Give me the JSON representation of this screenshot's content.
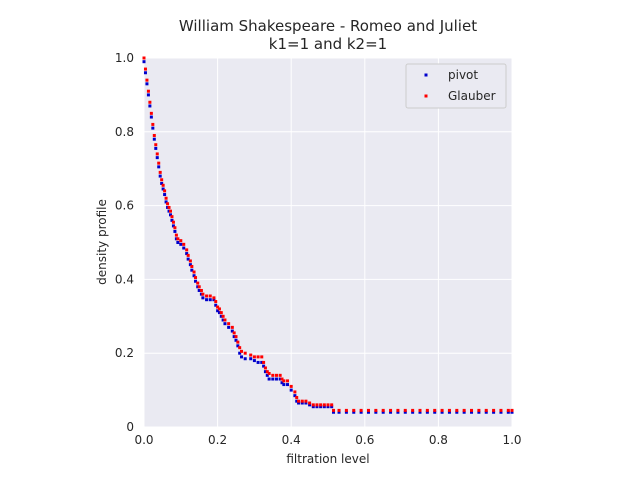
{
  "chart_data": {
    "type": "scatter",
    "title": "William Shakespeare - Romeo and Juliet",
    "subtitle": "k1=1 and k2=1",
    "xlabel": "filtration level",
    "ylabel": "density profile",
    "xlim": [
      0,
      1
    ],
    "ylim": [
      0,
      1
    ],
    "grid": true,
    "legend_position": "top-right",
    "x_ticks": [
      "0.0",
      "0.2",
      "0.4",
      "0.6",
      "0.8",
      "1.0"
    ],
    "y_ticks": [
      "0",
      "0.2",
      "0.4",
      "0.6",
      "0.8",
      "1.0"
    ],
    "colors": {
      "plot_background": "#eaeaf2",
      "grid": "#ffffff",
      "pivot": "#0000cc",
      "glauber": "#ff0000"
    },
    "series": [
      {
        "name": "pivot",
        "color": "#0000cc",
        "points": [
          [
            0.0,
            0.99
          ],
          [
            0.004,
            0.96
          ],
          [
            0.008,
            0.93
          ],
          [
            0.012,
            0.9
          ],
          [
            0.016,
            0.87
          ],
          [
            0.02,
            0.84
          ],
          [
            0.024,
            0.81
          ],
          [
            0.028,
            0.78
          ],
          [
            0.032,
            0.755
          ],
          [
            0.036,
            0.73
          ],
          [
            0.04,
            0.705
          ],
          [
            0.044,
            0.68
          ],
          [
            0.048,
            0.66
          ],
          [
            0.052,
            0.645
          ],
          [
            0.056,
            0.63
          ],
          [
            0.06,
            0.61
          ],
          [
            0.064,
            0.595
          ],
          [
            0.068,
            0.585
          ],
          [
            0.072,
            0.575
          ],
          [
            0.076,
            0.56
          ],
          [
            0.08,
            0.545
          ],
          [
            0.084,
            0.53
          ],
          [
            0.088,
            0.51
          ],
          [
            0.092,
            0.5
          ],
          [
            0.1,
            0.495
          ],
          [
            0.108,
            0.485
          ],
          [
            0.116,
            0.47
          ],
          [
            0.12,
            0.455
          ],
          [
            0.126,
            0.44
          ],
          [
            0.13,
            0.425
          ],
          [
            0.136,
            0.41
          ],
          [
            0.14,
            0.395
          ],
          [
            0.146,
            0.38
          ],
          [
            0.15,
            0.37
          ],
          [
            0.156,
            0.36
          ],
          [
            0.16,
            0.35
          ],
          [
            0.17,
            0.345
          ],
          [
            0.18,
            0.345
          ],
          [
            0.19,
            0.345
          ],
          [
            0.195,
            0.33
          ],
          [
            0.2,
            0.315
          ],
          [
            0.205,
            0.31
          ],
          [
            0.21,
            0.3
          ],
          [
            0.215,
            0.29
          ],
          [
            0.22,
            0.28
          ],
          [
            0.23,
            0.27
          ],
          [
            0.24,
            0.26
          ],
          [
            0.245,
            0.245
          ],
          [
            0.25,
            0.235
          ],
          [
            0.255,
            0.22
          ],
          [
            0.26,
            0.2
          ],
          [
            0.265,
            0.19
          ],
          [
            0.275,
            0.185
          ],
          [
            0.29,
            0.185
          ],
          [
            0.3,
            0.18
          ],
          [
            0.31,
            0.175
          ],
          [
            0.32,
            0.175
          ],
          [
            0.325,
            0.165
          ],
          [
            0.33,
            0.15
          ],
          [
            0.335,
            0.14
          ],
          [
            0.34,
            0.13
          ],
          [
            0.35,
            0.13
          ],
          [
            0.36,
            0.13
          ],
          [
            0.37,
            0.13
          ],
          [
            0.375,
            0.12
          ],
          [
            0.38,
            0.115
          ],
          [
            0.39,
            0.115
          ],
          [
            0.4,
            0.1
          ],
          [
            0.41,
            0.085
          ],
          [
            0.415,
            0.07
          ],
          [
            0.42,
            0.065
          ],
          [
            0.43,
            0.065
          ],
          [
            0.44,
            0.065
          ],
          [
            0.45,
            0.06
          ],
          [
            0.46,
            0.055
          ],
          [
            0.47,
            0.055
          ],
          [
            0.48,
            0.055
          ],
          [
            0.49,
            0.055
          ],
          [
            0.5,
            0.055
          ],
          [
            0.51,
            0.055
          ],
          [
            0.515,
            0.04
          ],
          [
            0.53,
            0.04
          ],
          [
            0.55,
            0.04
          ],
          [
            0.57,
            0.04
          ],
          [
            0.59,
            0.04
          ],
          [
            0.61,
            0.04
          ],
          [
            0.63,
            0.04
          ],
          [
            0.65,
            0.04
          ],
          [
            0.67,
            0.04
          ],
          [
            0.69,
            0.04
          ],
          [
            0.71,
            0.04
          ],
          [
            0.73,
            0.04
          ],
          [
            0.75,
            0.04
          ],
          [
            0.77,
            0.04
          ],
          [
            0.79,
            0.04
          ],
          [
            0.81,
            0.04
          ],
          [
            0.83,
            0.04
          ],
          [
            0.85,
            0.04
          ],
          [
            0.87,
            0.04
          ],
          [
            0.89,
            0.04
          ],
          [
            0.91,
            0.04
          ],
          [
            0.93,
            0.04
          ],
          [
            0.95,
            0.04
          ],
          [
            0.97,
            0.04
          ],
          [
            0.99,
            0.04
          ],
          [
            1.0,
            0.04
          ]
        ]
      },
      {
        "name": "Glauber",
        "color": "#ff0000",
        "points": [
          [
            0.0,
            1.0
          ],
          [
            0.004,
            0.97
          ],
          [
            0.008,
            0.94
          ],
          [
            0.012,
            0.91
          ],
          [
            0.016,
            0.88
          ],
          [
            0.02,
            0.85
          ],
          [
            0.024,
            0.82
          ],
          [
            0.028,
            0.79
          ],
          [
            0.032,
            0.765
          ],
          [
            0.036,
            0.74
          ],
          [
            0.04,
            0.715
          ],
          [
            0.044,
            0.69
          ],
          [
            0.048,
            0.67
          ],
          [
            0.052,
            0.655
          ],
          [
            0.056,
            0.64
          ],
          [
            0.06,
            0.62
          ],
          [
            0.064,
            0.605
          ],
          [
            0.068,
            0.595
          ],
          [
            0.072,
            0.585
          ],
          [
            0.076,
            0.57
          ],
          [
            0.08,
            0.555
          ],
          [
            0.084,
            0.54
          ],
          [
            0.088,
            0.52
          ],
          [
            0.092,
            0.51
          ],
          [
            0.1,
            0.505
          ],
          [
            0.108,
            0.495
          ],
          [
            0.116,
            0.48
          ],
          [
            0.12,
            0.465
          ],
          [
            0.126,
            0.45
          ],
          [
            0.13,
            0.435
          ],
          [
            0.136,
            0.42
          ],
          [
            0.14,
            0.405
          ],
          [
            0.146,
            0.39
          ],
          [
            0.15,
            0.38
          ],
          [
            0.156,
            0.37
          ],
          [
            0.16,
            0.36
          ],
          [
            0.17,
            0.355
          ],
          [
            0.18,
            0.355
          ],
          [
            0.19,
            0.35
          ],
          [
            0.195,
            0.34
          ],
          [
            0.2,
            0.325
          ],
          [
            0.205,
            0.32
          ],
          [
            0.21,
            0.31
          ],
          [
            0.215,
            0.3
          ],
          [
            0.22,
            0.29
          ],
          [
            0.23,
            0.28
          ],
          [
            0.24,
            0.27
          ],
          [
            0.245,
            0.255
          ],
          [
            0.25,
            0.245
          ],
          [
            0.255,
            0.23
          ],
          [
            0.26,
            0.215
          ],
          [
            0.265,
            0.205
          ],
          [
            0.275,
            0.2
          ],
          [
            0.29,
            0.195
          ],
          [
            0.3,
            0.19
          ],
          [
            0.31,
            0.19
          ],
          [
            0.32,
            0.19
          ],
          [
            0.325,
            0.175
          ],
          [
            0.33,
            0.16
          ],
          [
            0.335,
            0.15
          ],
          [
            0.34,
            0.145
          ],
          [
            0.35,
            0.14
          ],
          [
            0.36,
            0.14
          ],
          [
            0.37,
            0.14
          ],
          [
            0.375,
            0.13
          ],
          [
            0.38,
            0.125
          ],
          [
            0.39,
            0.125
          ],
          [
            0.4,
            0.11
          ],
          [
            0.41,
            0.095
          ],
          [
            0.415,
            0.08
          ],
          [
            0.42,
            0.07
          ],
          [
            0.43,
            0.07
          ],
          [
            0.44,
            0.07
          ],
          [
            0.45,
            0.065
          ],
          [
            0.46,
            0.06
          ],
          [
            0.47,
            0.06
          ],
          [
            0.48,
            0.06
          ],
          [
            0.49,
            0.06
          ],
          [
            0.5,
            0.06
          ],
          [
            0.51,
            0.06
          ],
          [
            0.515,
            0.045
          ],
          [
            0.53,
            0.045
          ],
          [
            0.55,
            0.045
          ],
          [
            0.57,
            0.045
          ],
          [
            0.59,
            0.045
          ],
          [
            0.61,
            0.045
          ],
          [
            0.63,
            0.045
          ],
          [
            0.65,
            0.045
          ],
          [
            0.67,
            0.045
          ],
          [
            0.69,
            0.045
          ],
          [
            0.71,
            0.045
          ],
          [
            0.73,
            0.045
          ],
          [
            0.75,
            0.045
          ],
          [
            0.77,
            0.045
          ],
          [
            0.79,
            0.045
          ],
          [
            0.81,
            0.045
          ],
          [
            0.83,
            0.045
          ],
          [
            0.85,
            0.045
          ],
          [
            0.87,
            0.045
          ],
          [
            0.89,
            0.045
          ],
          [
            0.91,
            0.045
          ],
          [
            0.93,
            0.045
          ],
          [
            0.95,
            0.045
          ],
          [
            0.97,
            0.045
          ],
          [
            0.99,
            0.045
          ],
          [
            1.0,
            0.045
          ]
        ]
      }
    ]
  }
}
